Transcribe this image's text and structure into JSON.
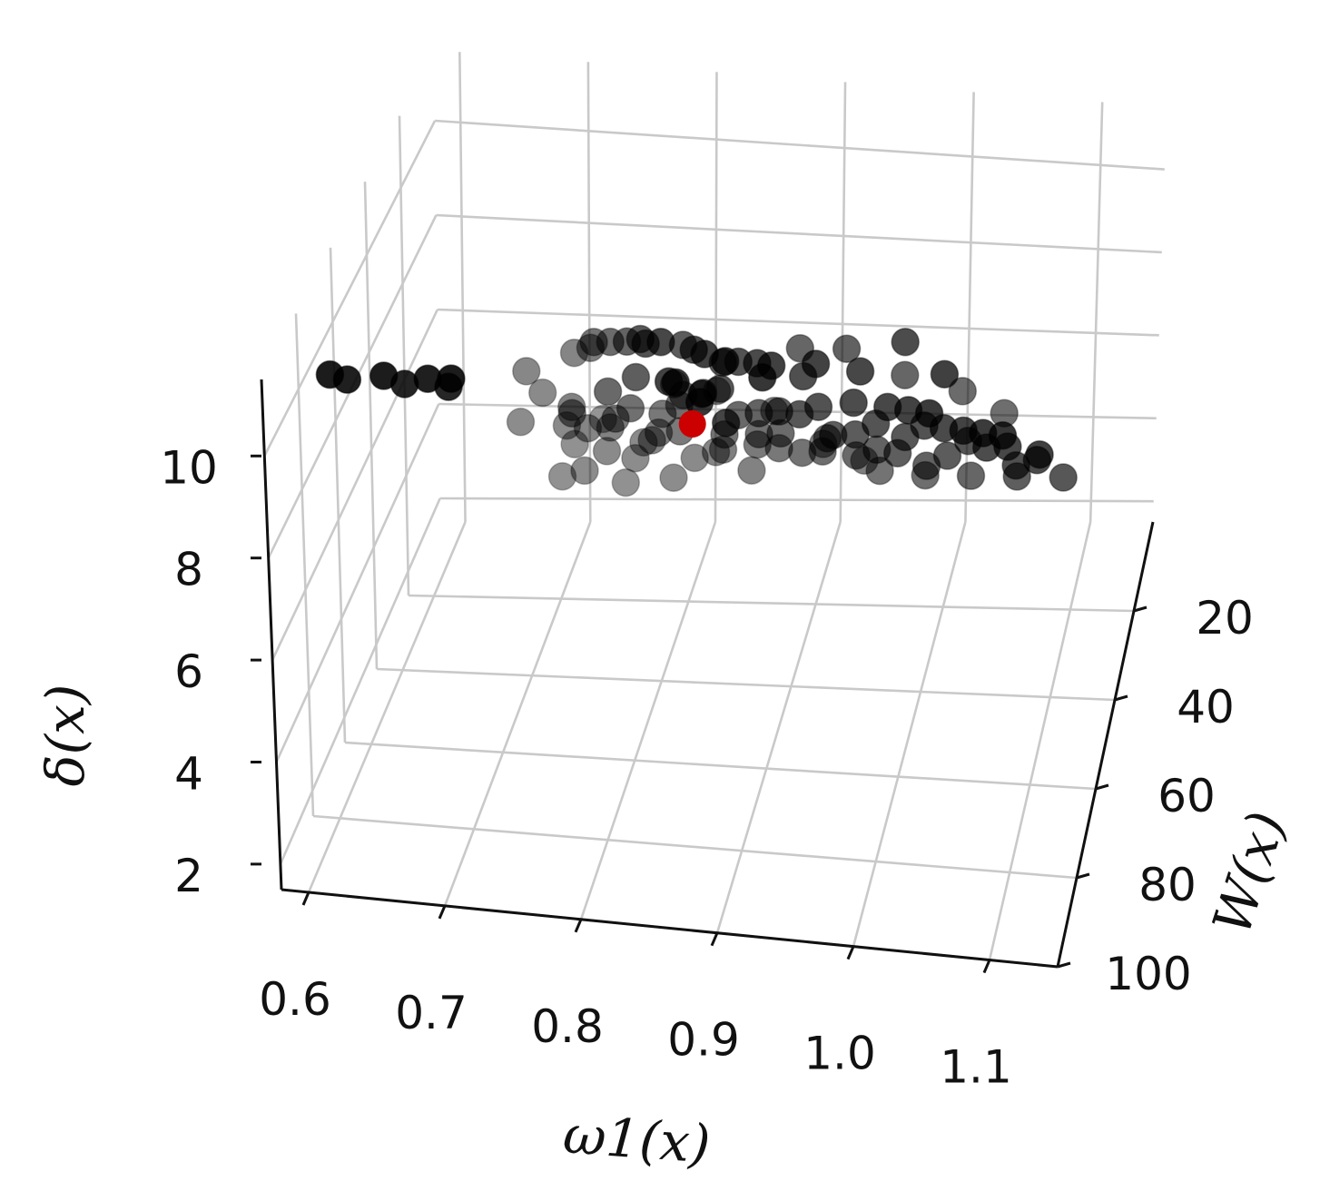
{
  "chart_data": {
    "type": "scatter",
    "projection": "3d",
    "xlabel": "ω1(x)",
    "ylabel": "W(x)",
    "zlabel": "δ(x)",
    "xlim": [
      0.58,
      1.15
    ],
    "ylim": [
      0,
      100
    ],
    "zlim": [
      1.5,
      11.5
    ],
    "x_ticks": [
      "0.6",
      "0.7",
      "0.8",
      "0.9",
      "1.0",
      "1.1"
    ],
    "y_ticks": [
      "20",
      "40",
      "60",
      "80",
      "100"
    ],
    "z_ticks": [
      "2",
      "4",
      "6",
      "8",
      "10"
    ],
    "grid": true,
    "colors": {
      "points": "#000000",
      "highlight": "#cc0000",
      "grid": "#c9c9c9"
    },
    "highlight_point": {
      "x": 0.85,
      "y": 60,
      "z": 8.6
    },
    "points": [
      {
        "x": 0.7,
        "y": 10,
        "z": 4.0
      },
      {
        "x": 0.71,
        "y": 12,
        "z": 3.6
      },
      {
        "x": 0.72,
        "y": 8,
        "z": 4.4
      },
      {
        "x": 0.7,
        "y": 15,
        "z": 4.8
      },
      {
        "x": 0.73,
        "y": 14,
        "z": 4.2
      },
      {
        "x": 0.74,
        "y": 10,
        "z": 3.2
      },
      {
        "x": 0.75,
        "y": 12,
        "z": 3.9
      },
      {
        "x": 0.72,
        "y": 18,
        "z": 5.0
      },
      {
        "x": 0.76,
        "y": 15,
        "z": 4.5
      },
      {
        "x": 0.74,
        "y": 20,
        "z": 5.2
      },
      {
        "x": 0.78,
        "y": 12,
        "z": 3.5
      },
      {
        "x": 0.69,
        "y": 10,
        "z": 3.3
      },
      {
        "x": 0.71,
        "y": 20,
        "z": 5.6
      },
      {
        "x": 0.77,
        "y": 18,
        "z": 4.8
      },
      {
        "x": 0.8,
        "y": 15,
        "z": 4.2
      },
      {
        "x": 0.78,
        "y": 22,
        "z": 5.3
      },
      {
        "x": 0.82,
        "y": 18,
        "z": 4.6
      },
      {
        "x": 0.75,
        "y": 25,
        "z": 5.8
      },
      {
        "x": 0.8,
        "y": 25,
        "z": 5.6
      },
      {
        "x": 0.83,
        "y": 22,
        "z": 5.0
      },
      {
        "x": 0.85,
        "y": 20,
        "z": 4.4
      },
      {
        "x": 0.79,
        "y": 28,
        "z": 6.2
      },
      {
        "x": 0.86,
        "y": 25,
        "z": 5.4
      },
      {
        "x": 0.84,
        "y": 30,
        "z": 6.0
      },
      {
        "x": 0.77,
        "y": 32,
        "z": 6.6
      },
      {
        "x": 0.88,
        "y": 28,
        "z": 5.6
      },
      {
        "x": 0.72,
        "y": 28,
        "z": 6.1
      },
      {
        "x": 0.81,
        "y": 34,
        "z": 6.9
      },
      {
        "x": 0.87,
        "y": 33,
        "z": 6.3
      },
      {
        "x": 0.9,
        "y": 30,
        "z": 5.7
      },
      {
        "x": 0.76,
        "y": 38,
        "z": 7.4
      },
      {
        "x": 0.82,
        "y": 40,
        "z": 7.6
      },
      {
        "x": 0.86,
        "y": 38,
        "z": 7.1
      },
      {
        "x": 0.89,
        "y": 36,
        "z": 6.6
      },
      {
        "x": 0.92,
        "y": 34,
        "z": 6.1
      },
      {
        "x": 0.84,
        "y": 44,
        "z": 8.0
      },
      {
        "x": 0.88,
        "y": 42,
        "z": 7.5
      },
      {
        "x": 0.93,
        "y": 40,
        "z": 6.9
      },
      {
        "x": 0.95,
        "y": 38,
        "z": 6.4
      },
      {
        "x": 0.79,
        "y": 45,
        "z": 8.3
      },
      {
        "x": 0.9,
        "y": 46,
        "z": 7.9
      },
      {
        "x": 0.94,
        "y": 45,
        "z": 7.4
      },
      {
        "x": 0.97,
        "y": 42,
        "z": 6.9
      },
      {
        "x": 0.86,
        "y": 50,
        "z": 8.6
      },
      {
        "x": 0.92,
        "y": 50,
        "z": 8.2
      },
      {
        "x": 0.96,
        "y": 48,
        "z": 7.7
      },
      {
        "x": 0.99,
        "y": 46,
        "z": 7.2
      },
      {
        "x": 1.01,
        "y": 44,
        "z": 6.8
      },
      {
        "x": 0.94,
        "y": 55,
        "z": 8.8
      },
      {
        "x": 0.98,
        "y": 52,
        "z": 8.3
      },
      {
        "x": 1.0,
        "y": 50,
        "z": 7.9
      },
      {
        "x": 1.03,
        "y": 48,
        "z": 7.4
      },
      {
        "x": 0.97,
        "y": 58,
        "z": 9.2
      },
      {
        "x": 1.02,
        "y": 55,
        "z": 8.6
      },
      {
        "x": 1.05,
        "y": 52,
        "z": 8.1
      },
      {
        "x": 1.0,
        "y": 62,
        "z": 9.5
      },
      {
        "x": 1.04,
        "y": 60,
        "z": 9.0
      },
      {
        "x": 1.07,
        "y": 58,
        "z": 8.5
      },
      {
        "x": 1.09,
        "y": 56,
        "z": 8.0
      },
      {
        "x": 1.02,
        "y": 66,
        "z": 9.8
      },
      {
        "x": 1.06,
        "y": 65,
        "z": 9.4
      },
      {
        "x": 1.09,
        "y": 62,
        "z": 8.9
      },
      {
        "x": 1.11,
        "y": 60,
        "z": 8.5
      },
      {
        "x": 1.04,
        "y": 70,
        "z": 10.1
      },
      {
        "x": 1.08,
        "y": 70,
        "z": 9.8
      },
      {
        "x": 1.12,
        "y": 68,
        "z": 9.3
      },
      {
        "x": 1.1,
        "y": 75,
        "z": 10.2
      },
      {
        "x": 0.96,
        "y": 30,
        "z": 5.4
      },
      {
        "x": 1.0,
        "y": 35,
        "z": 5.8
      },
      {
        "x": 1.04,
        "y": 40,
        "z": 6.3
      },
      {
        "x": 1.08,
        "y": 45,
        "z": 6.8
      },
      {
        "x": 1.12,
        "y": 50,
        "z": 7.3
      },
      {
        "x": 0.98,
        "y": 62,
        "z": 10.2
      },
      {
        "x": 0.95,
        "y": 65,
        "z": 10.5
      },
      {
        "x": 0.92,
        "y": 68,
        "z": 10.6
      },
      {
        "x": 0.9,
        "y": 60,
        "z": 10.0
      },
      {
        "x": 0.93,
        "y": 56,
        "z": 9.5
      },
      {
        "x": 0.88,
        "y": 55,
        "z": 9.6
      },
      {
        "x": 0.85,
        "y": 58,
        "z": 10.0
      },
      {
        "x": 0.83,
        "y": 62,
        "z": 10.4
      },
      {
        "x": 0.81,
        "y": 55,
        "z": 9.8
      },
      {
        "x": 0.86,
        "y": 48,
        "z": 9.0
      },
      {
        "x": 0.83,
        "y": 48,
        "z": 9.3
      },
      {
        "x": 0.8,
        "y": 50,
        "z": 9.5
      },
      {
        "x": 0.78,
        "y": 42,
        "z": 8.8
      },
      {
        "x": 0.76,
        "y": 36,
        "z": 8.3
      },
      {
        "x": 0.74,
        "y": 30,
        "z": 7.8
      },
      {
        "x": 0.73,
        "y": 24,
        "z": 7.2
      },
      {
        "x": 0.71,
        "y": 18,
        "z": 6.6
      },
      {
        "x": 0.79,
        "y": 20,
        "z": 6.2
      },
      {
        "x": 0.83,
        "y": 26,
        "z": 6.6
      },
      {
        "x": 0.87,
        "y": 22,
        "z": 5.9
      },
      {
        "x": 0.91,
        "y": 24,
        "z": 5.4
      },
      {
        "x": 0.94,
        "y": 22,
        "z": 4.9
      },
      {
        "x": 0.68,
        "y": 14,
        "z": 5.4
      },
      {
        "x": 0.67,
        "y": 16,
        "z": 6.0
      },
      {
        "x": 0.66,
        "y": 12,
        "z": 4.6
      },
      {
        "x": 0.91,
        "y": 40,
        "z": 8.8
      },
      {
        "x": 0.95,
        "y": 44,
        "z": 9.2
      },
      {
        "x": 0.99,
        "y": 40,
        "z": 8.4
      },
      {
        "x": 1.03,
        "y": 36,
        "z": 7.8
      },
      {
        "x": 1.06,
        "y": 34,
        "z": 7.2
      },
      {
        "x": 1.01,
        "y": 58,
        "z": 10.6
      },
      {
        "x": 1.05,
        "y": 68,
        "z": 10.8
      },
      {
        "x": 0.89,
        "y": 72,
        "z": 10.9
      },
      {
        "x": 0.92,
        "y": 74,
        "z": 10.8
      },
      {
        "x": 0.87,
        "y": 68,
        "z": 10.7
      },
      {
        "x": 0.86,
        "y": 62,
        "z": 9.4
      },
      {
        "x": 0.84,
        "y": 66,
        "z": 9.9
      },
      {
        "x": 0.88,
        "y": 64,
        "z": 9.0
      },
      {
        "x": 0.85,
        "y": 70,
        "z": 10.2
      },
      {
        "x": 0.87,
        "y": 72,
        "z": 10.0
      },
      {
        "x": 0.62,
        "y": 92,
        "z": 11.2
      },
      {
        "x": 0.63,
        "y": 90,
        "z": 11.0
      },
      {
        "x": 0.66,
        "y": 92,
        "z": 11.3
      },
      {
        "x": 0.67,
        "y": 88,
        "z": 10.9
      },
      {
        "x": 0.69,
        "y": 90,
        "z": 11.2
      },
      {
        "x": 0.7,
        "y": 86,
        "z": 10.8
      },
      {
        "x": 0.71,
        "y": 92,
        "z": 11.4
      }
    ]
  }
}
